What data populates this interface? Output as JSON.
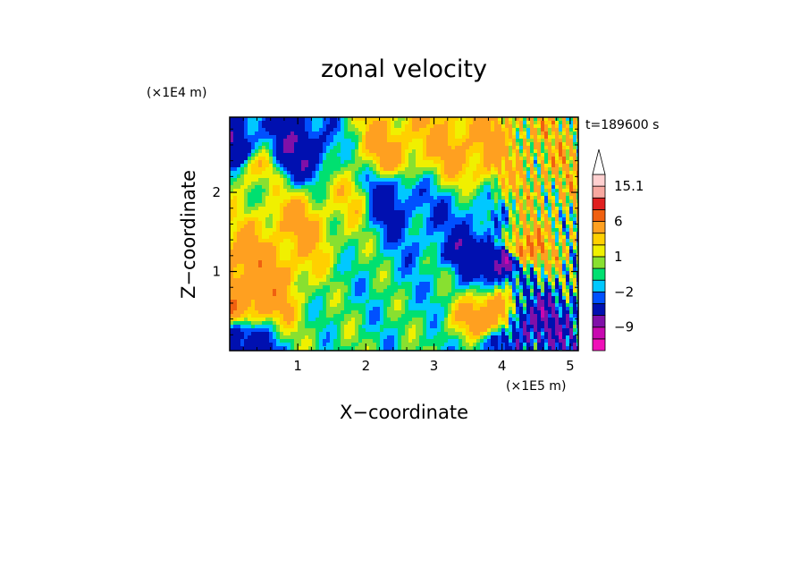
{
  "chart_data": {
    "type": "heatmap",
    "title": "zonal velocity",
    "xlabel": "X−coordinate",
    "ylabel": "Z−coordinate",
    "x_unit": "(×1E5 m)",
    "y_unit": "(×1E4 m)",
    "time_label": "t=189600 s",
    "x_range": [
      0,
      5.12
    ],
    "y_range": [
      0,
      2.95
    ],
    "x_ticks": [
      {
        "value": 1,
        "label": "1"
      },
      {
        "value": 2,
        "label": "2"
      },
      {
        "value": 3,
        "label": "3"
      },
      {
        "value": 4,
        "label": "4"
      },
      {
        "value": 5,
        "label": "5"
      }
    ],
    "y_ticks": [
      {
        "value": 1,
        "label": "1"
      },
      {
        "value": 2,
        "label": "2"
      }
    ],
    "colorbar": {
      "levels": [
        -15,
        -12,
        -9,
        -6,
        -3,
        -2,
        -1,
        0,
        1,
        2,
        3,
        6,
        9,
        12,
        15.1
      ],
      "colors": [
        "#f010b8",
        "#c808b0",
        "#8010a8",
        "#0010b0",
        "#0050ff",
        "#00c8ff",
        "#00e070",
        "#88e030",
        "#f0f000",
        "#ffd000",
        "#ffa020",
        "#f06010",
        "#e02020",
        "#f8a8a0",
        "#ffd0d0"
      ],
      "labels": [
        {
          "value": -9,
          "label": "−9"
        },
        {
          "value": -2,
          "label": "−2"
        },
        {
          "value": 1,
          "label": "1"
        },
        {
          "value": 6,
          "label": "6"
        },
        {
          "value": 15.1,
          "label": "15.1"
        }
      ]
    },
    "field_features": [
      {
        "x": 0.35,
        "z": 2.3,
        "u": 2.2
      },
      {
        "x": 0.1,
        "z": 0.7,
        "u": 5.5
      },
      {
        "x": 0.45,
        "z": 0.9,
        "u": 4.2
      },
      {
        "x": 1.0,
        "z": 1.6,
        "u": 3.2
      },
      {
        "x": 1.8,
        "z": 1.9,
        "u": 1.6
      },
      {
        "x": 2.4,
        "z": 2.55,
        "u": 3.2
      },
      {
        "x": 3.55,
        "z": 2.55,
        "u": 3.6
      },
      {
        "x": 4.6,
        "z": 2.35,
        "u": 2.6
      },
      {
        "x": 1.7,
        "z": 0.65,
        "u": -0.6
      },
      {
        "x": 2.9,
        "z": 0.9,
        "u": -0.8
      },
      {
        "x": 3.25,
        "z": 1.45,
        "u": -1.8
      },
      {
        "x": 0.05,
        "z": 2.5,
        "u": -5.0
      },
      {
        "x": 0.95,
        "z": 2.5,
        "u": -5.0
      },
      {
        "x": 2.3,
        "z": 1.9,
        "u": -4.0
      },
      {
        "x": 3.4,
        "z": 1.35,
        "u": -5.0
      },
      {
        "x": 4.05,
        "z": 1.15,
        "u": -8.0
      },
      {
        "x": 4.4,
        "z": 0.35,
        "u": -6.0
      },
      {
        "x": 4.25,
        "z": 1.25,
        "u": 6.5
      },
      {
        "x": 3.85,
        "z": 0.45,
        "u": 5.0
      },
      {
        "x": 0.05,
        "z": 0.05,
        "u": -5.0
      },
      {
        "x": 4.0,
        "z": 0.0,
        "u": -3.0
      }
    ]
  }
}
